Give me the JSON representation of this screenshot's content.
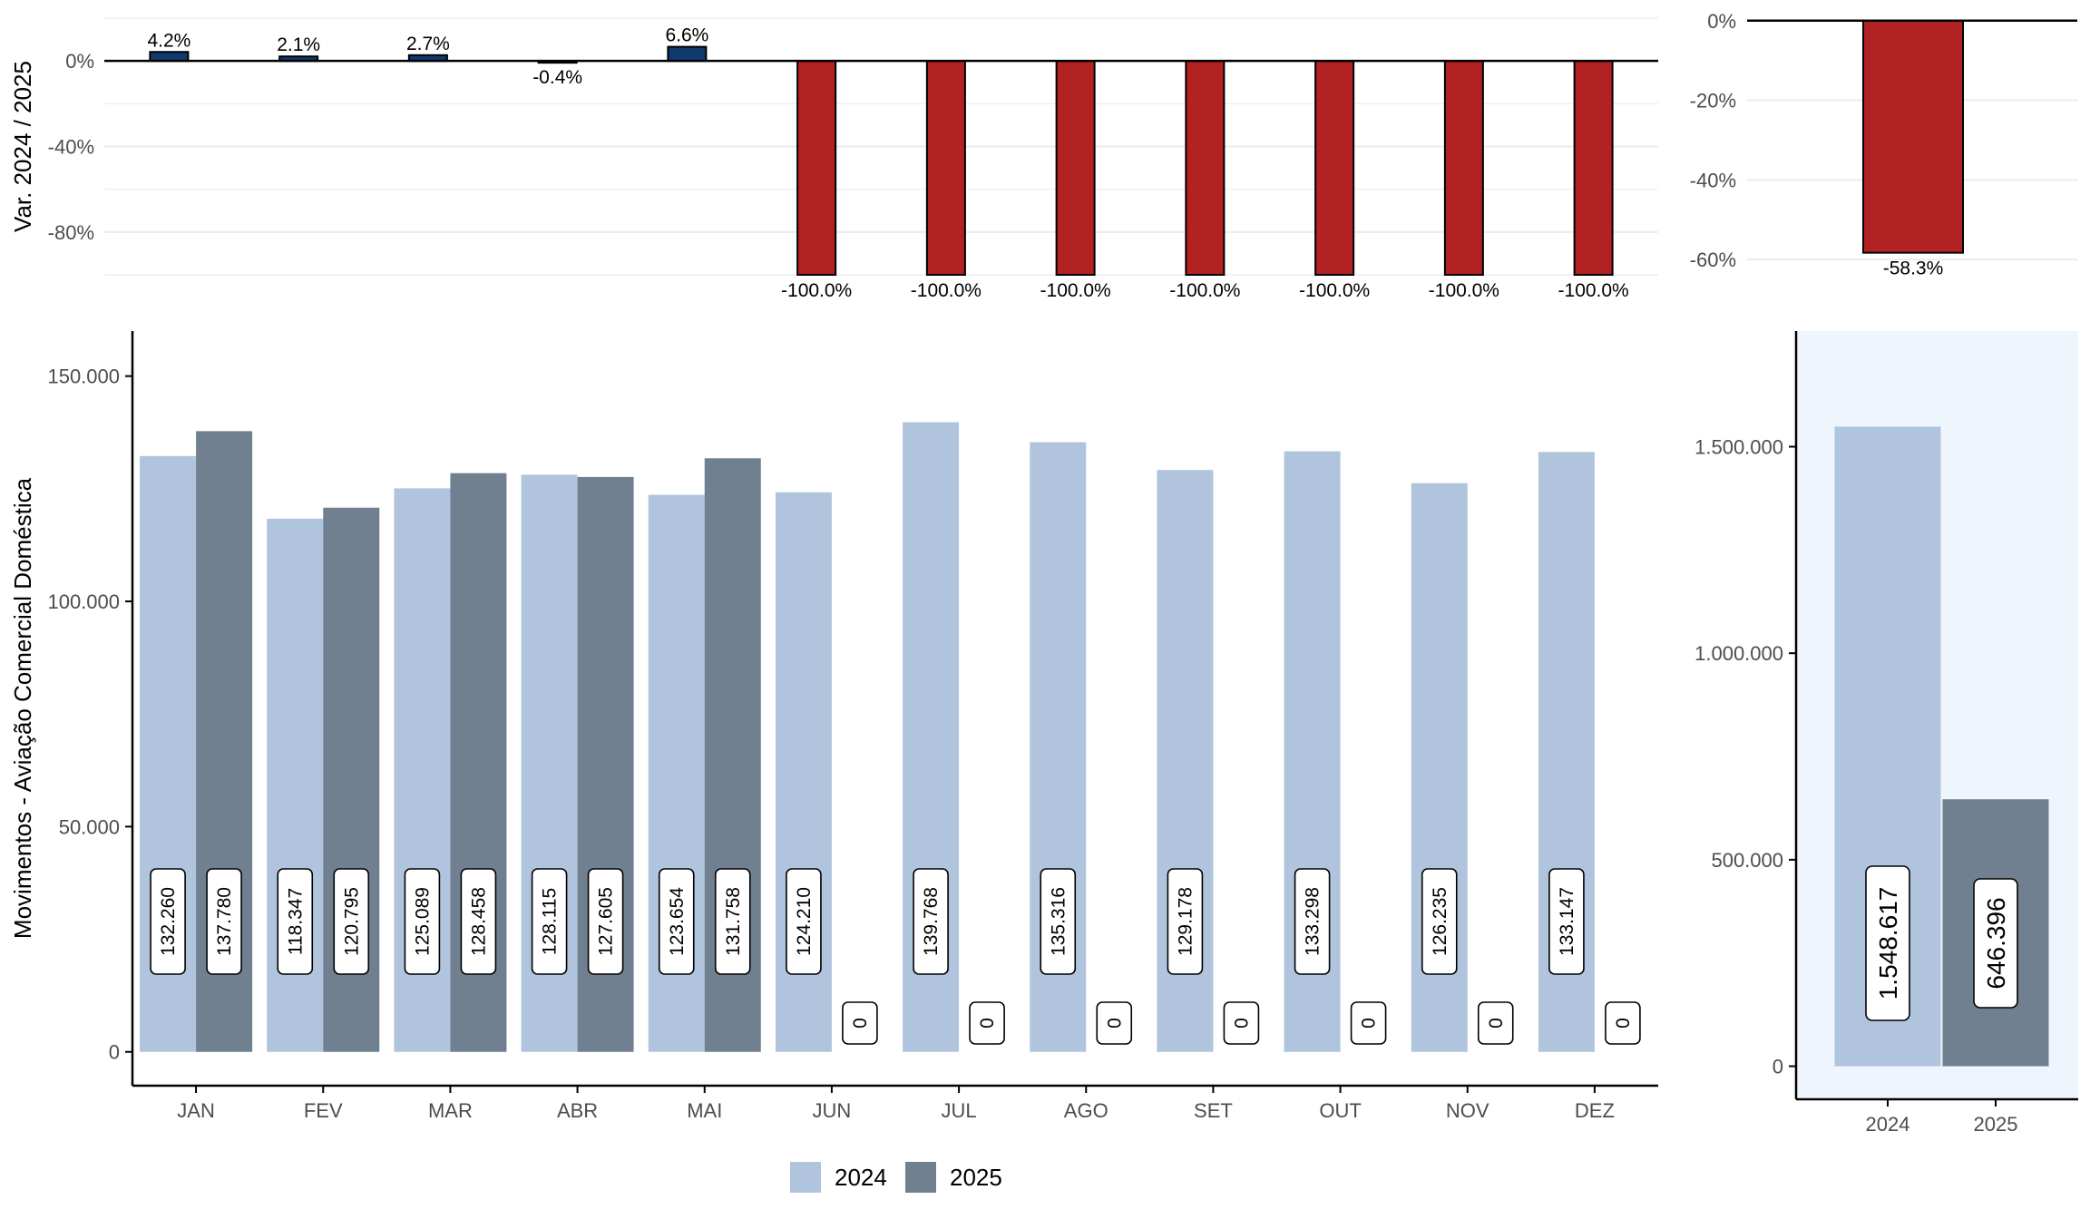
{
  "colors": {
    "series_2024": "#B0C4DE",
    "series_2025": "#708090",
    "var_positive": "#0E3A6E",
    "var_negative": "#B22222",
    "total_panel_bg": "#EEF5FD",
    "grid": "#EBEBEB"
  },
  "legend": {
    "label_2024": "2024",
    "label_2025": "2025"
  },
  "chart_data": [
    {
      "type": "bar",
      "panel": "monthly-variation",
      "ylabel": "Var. 2024 / 2025",
      "categories": [
        "JAN",
        "FEV",
        "MAR",
        "ABR",
        "MAI",
        "JUN",
        "JUL",
        "AGO",
        "SET",
        "OUT",
        "NOV",
        "DEZ"
      ],
      "values": [
        4.2,
        2.1,
        2.7,
        -0.4,
        6.6,
        -100.0,
        -100.0,
        -100.0,
        -100.0,
        -100.0,
        -100.0,
        -100.0
      ],
      "labels": [
        "4.2%",
        "2.1%",
        "2.7%",
        "-0.4%",
        "6.6%",
        "-100.0%",
        "-100.0%",
        "-100.0%",
        "-100.0%",
        "-100.0%",
        "-100.0%",
        "-100.0%"
      ],
      "yticks": [
        0,
        -40,
        -80
      ],
      "ytick_labels": [
        "0%",
        "-40%",
        "-80%"
      ],
      "ylim": [
        -100,
        20
      ]
    },
    {
      "type": "bar",
      "panel": "total-variation",
      "values": [
        -58.3
      ],
      "labels": [
        "-58.3%"
      ],
      "yticks": [
        0,
        -20,
        -40,
        -60
      ],
      "ytick_labels": [
        "0%",
        "-20%",
        "-40%",
        "-60%"
      ],
      "ylim": [
        -70,
        2
      ]
    },
    {
      "type": "bar",
      "panel": "monthly-movements",
      "ylabel": "Movimentos - Aviação Comercial Doméstica",
      "categories": [
        "JAN",
        "FEV",
        "MAR",
        "ABR",
        "MAI",
        "JUN",
        "JUL",
        "AGO",
        "SET",
        "OUT",
        "NOV",
        "DEZ"
      ],
      "series": [
        {
          "name": "2024",
          "values": [
            132260,
            118347,
            125089,
            128115,
            123654,
            124210,
            139768,
            135316,
            129178,
            133298,
            126235,
            133147
          ],
          "labels": [
            "132.260",
            "118.347",
            "125.089",
            "128.115",
            "123.654",
            "124.210",
            "139.768",
            "135.316",
            "129.178",
            "133.298",
            "126.235",
            "133.147"
          ]
        },
        {
          "name": "2025",
          "values": [
            137780,
            120795,
            128458,
            127605,
            131758,
            0,
            0,
            0,
            0,
            0,
            0,
            0
          ],
          "labels": [
            "137.780",
            "120.795",
            "128.458",
            "127.605",
            "131.758",
            "0",
            "0",
            "0",
            "0",
            "0",
            "0",
            "0"
          ]
        }
      ],
      "yticks": [
        0,
        50000,
        100000,
        150000
      ],
      "ytick_labels": [
        "0",
        "50.000",
        "100.000",
        "150.000"
      ],
      "ylim": [
        -7500,
        160000
      ]
    },
    {
      "type": "bar",
      "panel": "annual-totals",
      "categories": [
        "2024",
        "2025"
      ],
      "values": [
        1548617,
        646396
      ],
      "labels": [
        "1.548.617",
        "646.396"
      ],
      "yticks": [
        0,
        500000,
        1000000,
        1500000
      ],
      "ytick_labels": [
        "0",
        "500.000",
        "1.000.000",
        "1.500.000"
      ],
      "ylim": [
        -80000,
        1780000
      ]
    }
  ]
}
